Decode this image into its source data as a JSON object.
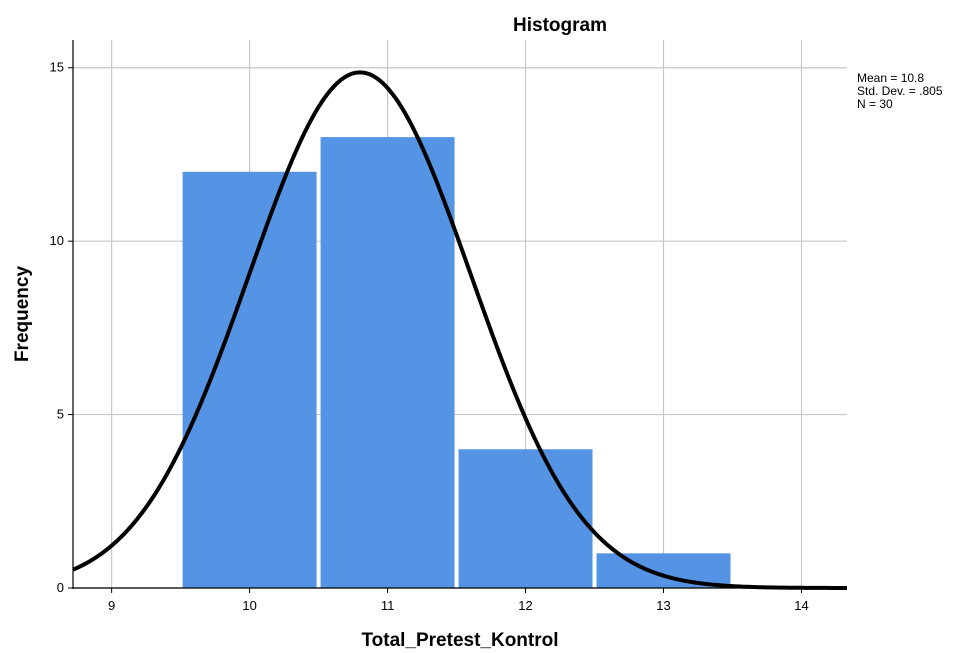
{
  "chart_data": {
    "type": "bar",
    "title": "Histogram",
    "xlabel": "Total_Pretest_Kontrol",
    "ylabel": "Frequency",
    "x_ticks": [
      "9",
      "10",
      "11",
      "12",
      "13",
      "14"
    ],
    "y_ticks": [
      "0",
      "5",
      "10",
      "15"
    ],
    "xlim": [
      8.72,
      14.33
    ],
    "ylim": [
      0,
      15.8
    ],
    "categories": [
      "10",
      "11",
      "12",
      "13"
    ],
    "values": [
      12,
      13,
      4,
      1
    ],
    "bin_width": 1,
    "bar_color": "#5594e4",
    "curve_color": "#000000",
    "grid": true,
    "normal_curve": {
      "mean": 10.8,
      "sd": 0.805,
      "n": 30
    },
    "legend_position": "top-right",
    "stats": [
      "Mean = 10.8",
      "Std. Dev. = .805",
      "N = 30"
    ]
  }
}
